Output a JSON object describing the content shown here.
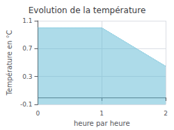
{
  "chart_data": {
    "type": "area",
    "title": "Evolution de la température",
    "x": [
      0,
      1,
      2
    ],
    "values": [
      1.0,
      1.0,
      0.45
    ],
    "xlabel": "heure par heure",
    "ylabel": "Température en °C",
    "xlim": [
      0,
      2
    ],
    "xticks": [
      0,
      1,
      2
    ],
    "ylim": [
      -0.1,
      1.1
    ],
    "yticks": [
      -0.1,
      0.3,
      0.7,
      1.1
    ],
    "grid": true,
    "color": "#5bb8d4",
    "line_style": "dotted"
  }
}
